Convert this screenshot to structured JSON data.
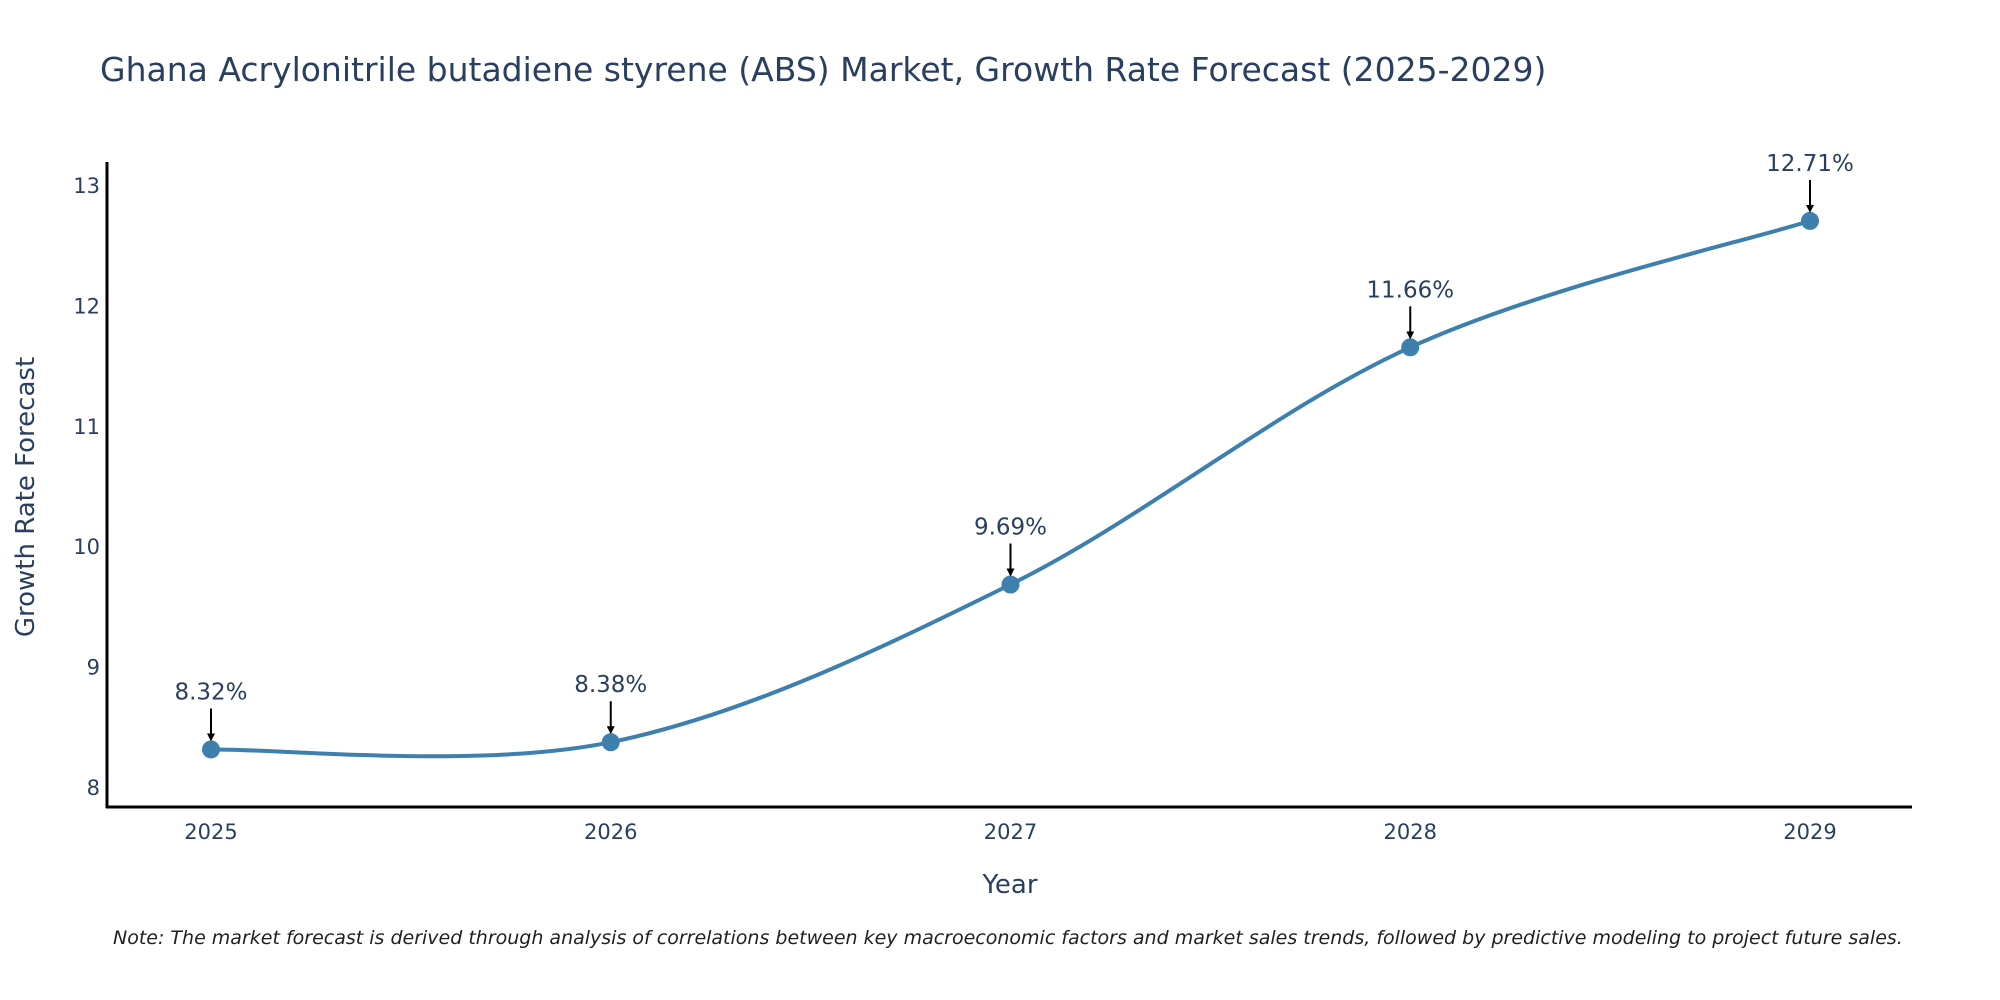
{
  "chart_data": {
    "type": "line",
    "title": "Ghana Acrylonitrile butadiene styrene (ABS) Market, Growth Rate Forecast (2025-2029)",
    "xlabel": "Year",
    "ylabel": "Growth Rate Forecast",
    "categories": [
      "2025",
      "2026",
      "2027",
      "2028",
      "2029"
    ],
    "values": [
      8.32,
      8.38,
      9.69,
      11.66,
      12.71
    ],
    "labels": [
      "8.32%",
      "8.38%",
      "9.69%",
      "11.66%",
      "12.71%"
    ],
    "yticks": [
      "8",
      "9",
      "10",
      "11",
      "12",
      "13"
    ],
    "ylim": [
      7.85,
      13.2
    ],
    "grid": false,
    "line_shape": "spline",
    "line_color": "#3d7fad",
    "marker_color": "#3d7fad",
    "arrow_color": "#000000"
  },
  "note": "Note: The market forecast is derived through analysis of correlations between key macroeconomic factors and market sales trends, followed by predictive modeling to project future sales."
}
